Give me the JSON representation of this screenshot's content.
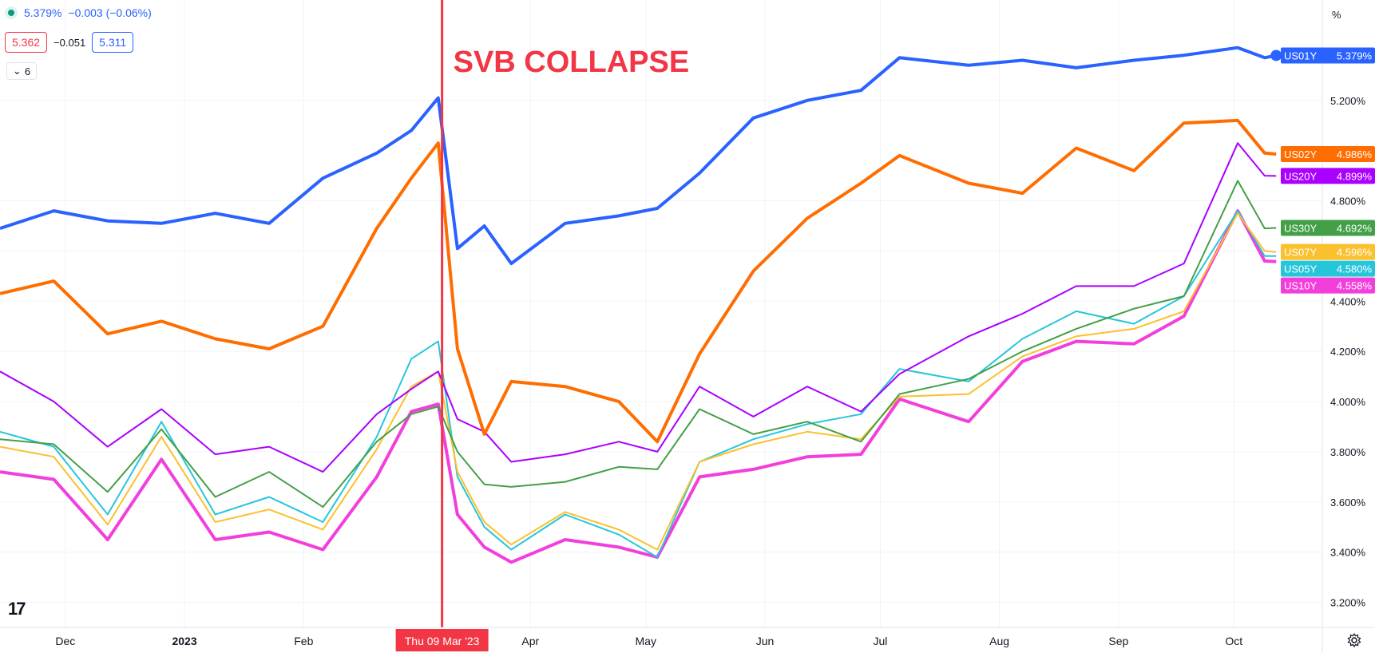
{
  "header": {
    "price": "5.379%",
    "change": "−0.003 (−0.06%)",
    "bid": "5.362",
    "spread": "−0.051",
    "ask": "5.311",
    "collapse_count": "6",
    "unit": "%"
  },
  "annotation": {
    "text": "SVB COLLAPSE",
    "date_label": "Thu 09 Mar '23",
    "x_date": "2023-03-09"
  },
  "colors": {
    "US01Y": "#2962ff",
    "US02Y": "#ff6d00",
    "US20Y": "#aa00ff",
    "US30Y": "#43a047",
    "US07Y": "#fbc02d",
    "US05Y": "#26c6da",
    "US10Y": "#f23fdc",
    "annotation": "#f23645"
  },
  "chart_data": {
    "type": "line",
    "x_axis_type": "date",
    "xlim": [
      "2022-11-14",
      "2023-10-24"
    ],
    "ylim": [
      3.1,
      5.6
    ],
    "y_ticks": [
      3.2,
      3.4,
      3.6,
      3.8,
      4.0,
      4.2,
      4.4,
      4.6,
      4.8,
      5.2
    ],
    "y_tick_labels": [
      "3.200%",
      "3.400%",
      "3.600%",
      "3.800%",
      "4.000%",
      "4.200%",
      "4.400%",
      "4.600%",
      "4.800%",
      "5.200%"
    ],
    "x_ticks": [
      {
        "date": "2022-12-01",
        "label": "Dec"
      },
      {
        "date": "2023-01-01",
        "label": "2023"
      },
      {
        "date": "2023-02-01",
        "label": "Feb"
      },
      {
        "date": "2023-04-01",
        "label": "Apr"
      },
      {
        "date": "2023-05-01",
        "label": "May"
      },
      {
        "date": "2023-06-01",
        "label": "Jun"
      },
      {
        "date": "2023-07-01",
        "label": "Jul"
      },
      {
        "date": "2023-08-01",
        "label": "Aug"
      },
      {
        "date": "2023-09-01",
        "label": "Sep"
      },
      {
        "date": "2023-10-01",
        "label": "Oct"
      }
    ],
    "grid": true,
    "x": [
      "2022-11-14",
      "2022-11-28",
      "2022-12-12",
      "2022-12-26",
      "2023-01-09",
      "2023-01-23",
      "2023-02-06",
      "2023-02-20",
      "2023-03-01",
      "2023-03-08",
      "2023-03-13",
      "2023-03-20",
      "2023-03-27",
      "2023-04-10",
      "2023-04-24",
      "2023-05-04",
      "2023-05-15",
      "2023-05-29",
      "2023-06-12",
      "2023-06-26",
      "2023-07-06",
      "2023-07-24",
      "2023-08-07",
      "2023-08-21",
      "2023-09-05",
      "2023-09-18",
      "2023-10-02",
      "2023-10-09",
      "2023-10-12"
    ],
    "series": [
      {
        "name": "US01Y",
        "last": "5.379%",
        "values": [
          4.69,
          4.76,
          4.72,
          4.71,
          4.75,
          4.71,
          4.89,
          4.99,
          5.08,
          5.21,
          4.61,
          4.7,
          4.55,
          4.71,
          4.74,
          4.77,
          4.91,
          5.13,
          5.2,
          5.24,
          5.37,
          5.34,
          5.36,
          5.33,
          5.36,
          5.38,
          5.41,
          5.37,
          5.379
        ]
      },
      {
        "name": "US02Y",
        "last": "4.986%",
        "values": [
          4.43,
          4.48,
          4.27,
          4.32,
          4.25,
          4.21,
          4.3,
          4.69,
          4.89,
          5.03,
          4.21,
          3.87,
          4.08,
          4.06,
          4.0,
          3.84,
          4.19,
          4.52,
          4.73,
          4.87,
          4.98,
          4.87,
          4.83,
          5.01,
          4.92,
          5.11,
          5.12,
          4.99,
          4.986
        ]
      },
      {
        "name": "US20Y",
        "last": "4.899%",
        "values": [
          4.12,
          4.0,
          3.82,
          3.97,
          3.79,
          3.82,
          3.72,
          3.95,
          4.05,
          4.12,
          3.93,
          3.88,
          3.76,
          3.79,
          3.84,
          3.8,
          4.06,
          3.94,
          4.06,
          3.96,
          4.11,
          4.26,
          4.35,
          4.46,
          4.46,
          4.55,
          5.03,
          4.9,
          4.899
        ]
      },
      {
        "name": "US30Y",
        "last": "4.692%",
        "values": [
          3.85,
          3.83,
          3.64,
          3.89,
          3.62,
          3.72,
          3.58,
          3.84,
          3.95,
          3.98,
          3.8,
          3.67,
          3.66,
          3.68,
          3.74,
          3.73,
          3.97,
          3.87,
          3.92,
          3.84,
          4.03,
          4.09,
          4.2,
          4.29,
          4.37,
          4.42,
          4.88,
          4.69,
          4.692
        ]
      },
      {
        "name": "US07Y",
        "last": "4.596%",
        "values": [
          3.82,
          3.78,
          3.51,
          3.86,
          3.52,
          3.57,
          3.49,
          3.81,
          4.06,
          4.12,
          3.72,
          3.52,
          3.43,
          3.56,
          3.49,
          3.41,
          3.76,
          3.83,
          3.88,
          3.85,
          4.02,
          4.03,
          4.18,
          4.26,
          4.29,
          4.36,
          4.75,
          4.6,
          4.596
        ]
      },
      {
        "name": "US05Y",
        "last": "4.580%",
        "values": [
          3.88,
          3.82,
          3.55,
          3.92,
          3.55,
          3.62,
          3.52,
          3.86,
          4.17,
          4.24,
          3.7,
          3.5,
          3.41,
          3.55,
          3.47,
          3.38,
          3.76,
          3.85,
          3.91,
          3.95,
          4.13,
          4.08,
          4.25,
          4.36,
          4.31,
          4.42,
          4.76,
          4.58,
          4.58
        ]
      },
      {
        "name": "US10Y",
        "last": "4.558%",
        "values": [
          3.72,
          3.69,
          3.45,
          3.77,
          3.45,
          3.48,
          3.41,
          3.7,
          3.96,
          3.99,
          3.55,
          3.42,
          3.36,
          3.45,
          3.42,
          3.38,
          3.7,
          3.73,
          3.78,
          3.79,
          4.01,
          3.92,
          4.16,
          4.24,
          4.23,
          4.34,
          4.76,
          4.56,
          4.558
        ]
      }
    ]
  }
}
